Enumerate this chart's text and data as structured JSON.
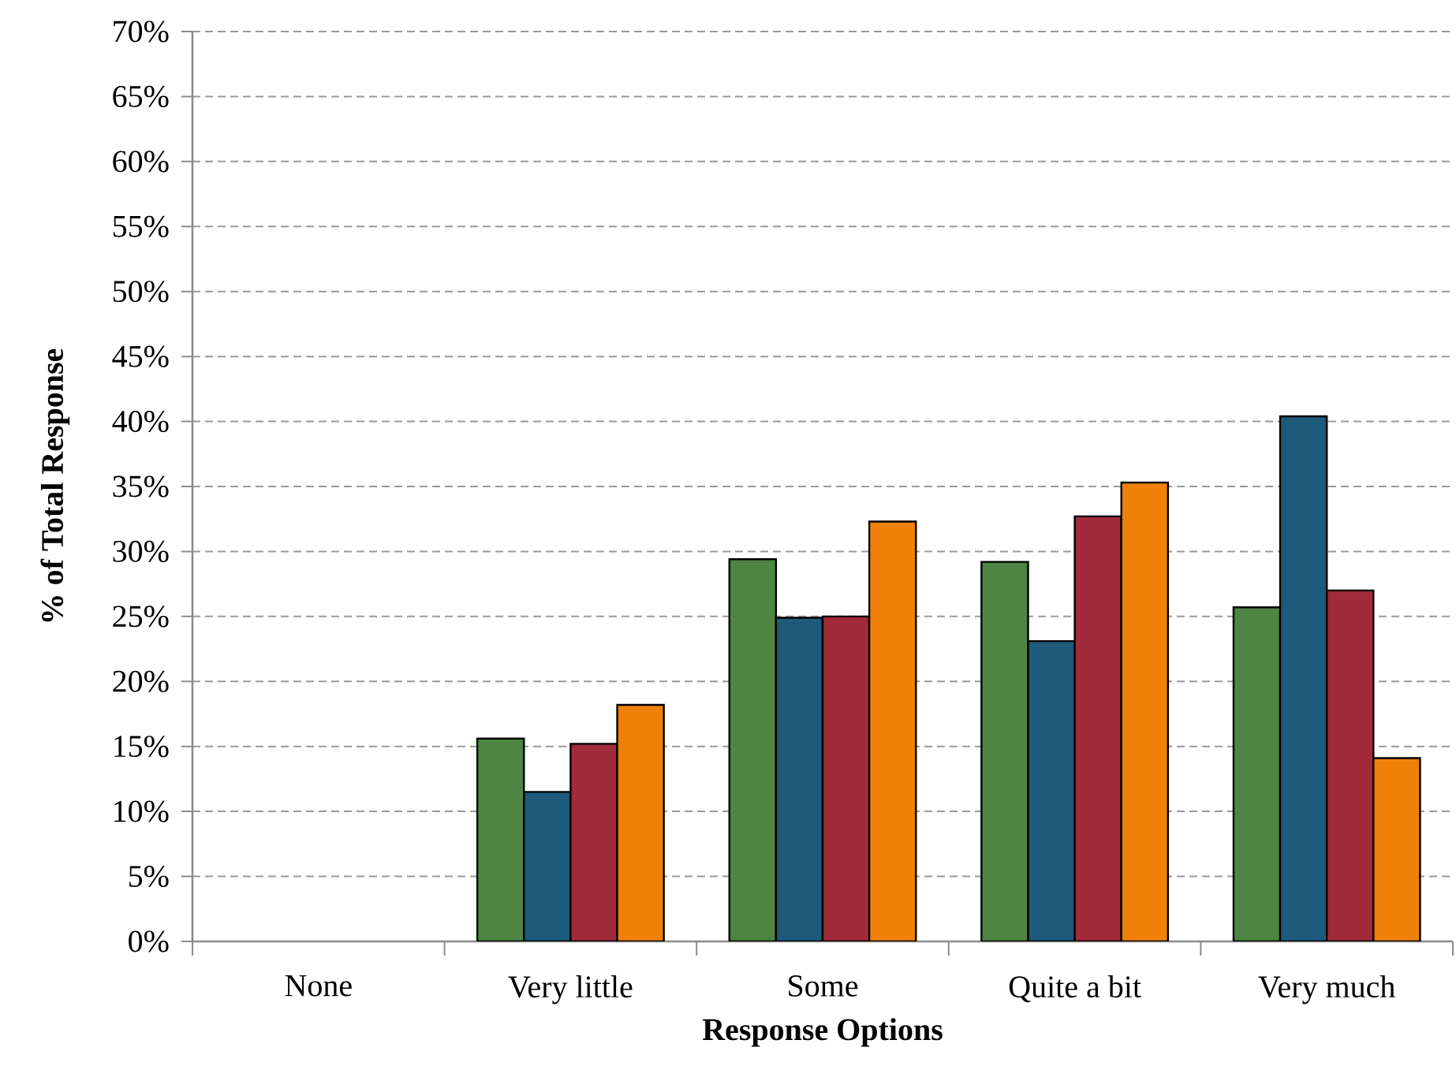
{
  "chart_data": {
    "type": "bar",
    "xlabel": "Response Options",
    "ylabel": "% of Total Response",
    "categories": [
      "None",
      "Very little",
      "Some",
      "Quite a bit",
      "Very much"
    ],
    "series": [
      {
        "color": "#4e8542",
        "values": [
          null,
          15.6,
          29.4,
          29.2,
          25.7
        ]
      },
      {
        "color": "#1d5a7b",
        "values": [
          null,
          11.5,
          24.9,
          23.1,
          40.4
        ]
      },
      {
        "color": "#a12a3b",
        "values": [
          null,
          15.2,
          25.0,
          32.7,
          27.0
        ]
      },
      {
        "color": "#ef810b",
        "values": [
          null,
          18.2,
          32.3,
          35.3,
          14.1
        ]
      }
    ],
    "ylim": [
      0,
      70
    ],
    "yticks": [
      {
        "value": 0,
        "label": "0%"
      },
      {
        "value": 5,
        "label": "5%"
      },
      {
        "value": 10,
        "label": "10%"
      },
      {
        "value": 15,
        "label": "15%"
      },
      {
        "value": 20,
        "label": "20%"
      },
      {
        "value": 25,
        "label": "25%"
      },
      {
        "value": 30,
        "label": "30%"
      },
      {
        "value": 35,
        "label": "35%"
      },
      {
        "value": 40,
        "label": "40%"
      },
      {
        "value": 45,
        "label": "45%"
      },
      {
        "value": 50,
        "label": "50%"
      },
      {
        "value": 55,
        "label": "55%"
      },
      {
        "value": 60,
        "label": "60%"
      },
      {
        "value": 65,
        "label": "65%"
      },
      {
        "value": 70,
        "label": "70%"
      }
    ],
    "grid": "y"
  }
}
